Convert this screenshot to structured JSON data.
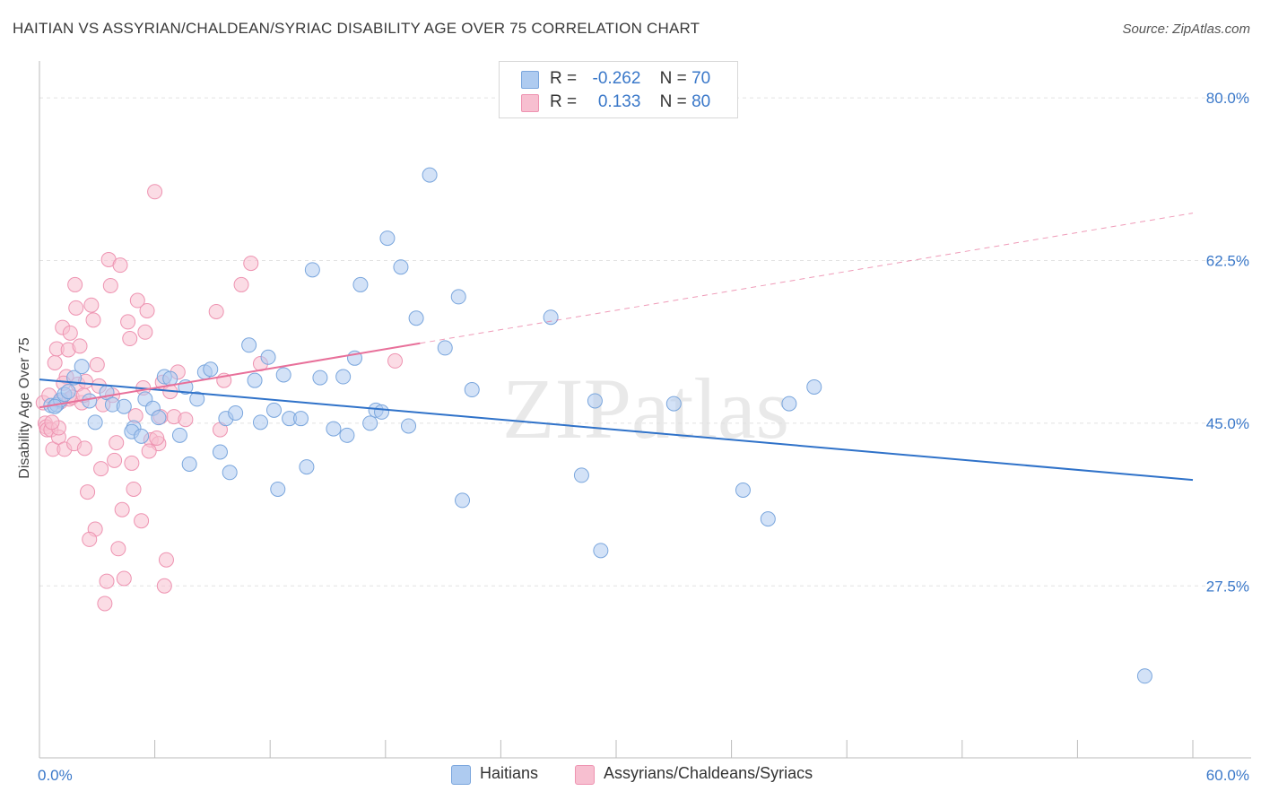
{
  "title": "HAITIAN VS ASSYRIAN/CHALDEAN/SYRIAC DISABILITY AGE OVER 75 CORRELATION CHART",
  "source": "Source: ZipAtlas.com",
  "watermark": "ZIPatlas",
  "legend_top": [
    {
      "r_label": "R =",
      "r_value": "-0.262",
      "n_label": "N =",
      "n_value": "70"
    },
    {
      "r_label": "R =",
      "r_value": "0.133",
      "n_label": "N =",
      "n_value": "80"
    }
  ],
  "colors": {
    "haitians_fill": "#aecbf0",
    "haitians_stroke": "#7aa6dd",
    "haitians_line": "#2f72c9",
    "assyrians_fill": "#f7bfd0",
    "assyrians_stroke": "#ee93b1",
    "assyrians_line": "#e8709a",
    "axis_label": "#3a78c9",
    "grid": "#e2e2e2"
  },
  "chart_data": {
    "type": "scatter",
    "xlabel": "",
    "ylabel": "Disability Age Over 75",
    "xlim": [
      0,
      60
    ],
    "ylim": [
      9,
      83
    ],
    "x_tick_labels": [
      "0.0%",
      "60.0%"
    ],
    "y_ticks": [
      27.5,
      45.0,
      62.5,
      80.0
    ],
    "y_tick_labels": [
      "27.5%",
      "45.0%",
      "62.5%",
      "80.0%"
    ],
    "grid": true,
    "legend_position": "top-center",
    "series": [
      {
        "name": "Haitians",
        "r": -0.262,
        "n": 70,
        "trend": {
          "x0": 0,
          "y0": 49.7,
          "x1": 60,
          "y1": 38.9,
          "solid_to": 60
        },
        "points": [
          [
            0.6,
            46.9
          ],
          [
            0.9,
            47.0
          ],
          [
            1.1,
            47.5
          ],
          [
            1.3,
            48.1
          ],
          [
            1.8,
            49.9
          ],
          [
            2.2,
            51.1
          ],
          [
            2.6,
            47.4
          ],
          [
            2.9,
            45.1
          ],
          [
            3.5,
            48.3
          ],
          [
            3.8,
            47.0
          ],
          [
            4.4,
            46.8
          ],
          [
            4.9,
            44.5
          ],
          [
            4.8,
            44.1
          ],
          [
            5.3,
            43.6
          ],
          [
            5.5,
            47.6
          ],
          [
            5.9,
            46.6
          ],
          [
            6.2,
            45.6
          ],
          [
            6.5,
            50.0
          ],
          [
            6.8,
            49.8
          ],
          [
            7.3,
            43.7
          ],
          [
            7.6,
            48.9
          ],
          [
            7.8,
            40.6
          ],
          [
            8.2,
            47.6
          ],
          [
            8.6,
            50.5
          ],
          [
            8.9,
            50.8
          ],
          [
            9.4,
            41.9
          ],
          [
            9.7,
            45.5
          ],
          [
            9.9,
            39.7
          ],
          [
            10.2,
            46.1
          ],
          [
            10.9,
            53.4
          ],
          [
            11.2,
            49.6
          ],
          [
            11.5,
            45.1
          ],
          [
            11.9,
            52.1
          ],
          [
            12.2,
            46.4
          ],
          [
            12.4,
            37.9
          ],
          [
            12.7,
            50.2
          ],
          [
            13.0,
            45.5
          ],
          [
            13.6,
            45.5
          ],
          [
            13.9,
            40.3
          ],
          [
            14.2,
            61.5
          ],
          [
            14.6,
            49.9
          ],
          [
            15.3,
            44.4
          ],
          [
            15.8,
            50.0
          ],
          [
            16.0,
            43.7
          ],
          [
            16.4,
            52.0
          ],
          [
            16.7,
            59.9
          ],
          [
            17.2,
            45.0
          ],
          [
            17.5,
            46.4
          ],
          [
            17.8,
            46.2
          ],
          [
            18.1,
            64.9
          ],
          [
            18.8,
            61.8
          ],
          [
            19.2,
            44.7
          ],
          [
            19.6,
            56.3
          ],
          [
            20.3,
            71.7
          ],
          [
            21.1,
            53.1
          ],
          [
            21.8,
            58.6
          ],
          [
            22.0,
            36.7
          ],
          [
            22.5,
            48.6
          ],
          [
            26.6,
            56.4
          ],
          [
            28.2,
            39.4
          ],
          [
            28.9,
            47.4
          ],
          [
            29.2,
            31.3
          ],
          [
            33.0,
            47.1
          ],
          [
            36.6,
            37.8
          ],
          [
            37.9,
            34.7
          ],
          [
            39.0,
            47.1
          ],
          [
            40.3,
            48.9
          ],
          [
            57.5,
            17.8
          ],
          [
            0.8,
            46.8
          ],
          [
            1.5,
            48.4
          ]
        ]
      },
      {
        "name": "Assyrians/Chaldeans/Syriacs",
        "r": 0.133,
        "n": 80,
        "trend": {
          "x0": 0,
          "y0": 46.7,
          "x1": 60,
          "y1": 67.6,
          "solid_to": 19.8
        },
        "points": [
          [
            0.2,
            47.2
          ],
          [
            0.3,
            45.0
          ],
          [
            0.35,
            44.6
          ],
          [
            0.4,
            44.3
          ],
          [
            0.5,
            48.0
          ],
          [
            0.6,
            44.3
          ],
          [
            0.7,
            42.2
          ],
          [
            0.8,
            51.5
          ],
          [
            0.9,
            53.0
          ],
          [
            1.0,
            43.5
          ],
          [
            1.1,
            47.3
          ],
          [
            1.2,
            55.3
          ],
          [
            1.3,
            42.2
          ],
          [
            1.4,
            50.0
          ],
          [
            1.5,
            52.9
          ],
          [
            1.55,
            47.6
          ],
          [
            1.6,
            54.7
          ],
          [
            1.7,
            47.8
          ],
          [
            1.8,
            42.8
          ],
          [
            1.85,
            59.9
          ],
          [
            1.9,
            57.4
          ],
          [
            2.0,
            49.2
          ],
          [
            2.1,
            53.3
          ],
          [
            2.2,
            47.2
          ],
          [
            2.3,
            48.0
          ],
          [
            2.4,
            49.5
          ],
          [
            2.5,
            37.6
          ],
          [
            2.7,
            57.7
          ],
          [
            2.8,
            56.1
          ],
          [
            2.9,
            33.6
          ],
          [
            3.0,
            51.3
          ],
          [
            3.1,
            49.0
          ],
          [
            3.2,
            40.1
          ],
          [
            3.4,
            25.6
          ],
          [
            3.5,
            28.0
          ],
          [
            3.6,
            62.6
          ],
          [
            3.7,
            59.8
          ],
          [
            3.8,
            48.0
          ],
          [
            3.9,
            41.0
          ],
          [
            4.0,
            42.9
          ],
          [
            4.2,
            62.0
          ],
          [
            4.3,
            35.7
          ],
          [
            4.4,
            28.3
          ],
          [
            4.6,
            55.9
          ],
          [
            4.7,
            54.1
          ],
          [
            4.8,
            40.7
          ],
          [
            4.9,
            37.9
          ],
          [
            5.0,
            45.8
          ],
          [
            5.1,
            58.2
          ],
          [
            5.3,
            34.5
          ],
          [
            5.4,
            48.8
          ],
          [
            5.5,
            54.8
          ],
          [
            5.6,
            57.1
          ],
          [
            5.8,
            43.2
          ],
          [
            6.0,
            69.9
          ],
          [
            6.2,
            42.8
          ],
          [
            6.3,
            45.7
          ],
          [
            6.4,
            49.4
          ],
          [
            6.5,
            27.5
          ],
          [
            6.6,
            30.3
          ],
          [
            6.8,
            48.4
          ],
          [
            7.0,
            45.7
          ],
          [
            7.2,
            50.5
          ],
          [
            9.2,
            57.0
          ],
          [
            9.4,
            44.3
          ],
          [
            9.6,
            49.6
          ],
          [
            10.5,
            59.9
          ],
          [
            11.0,
            62.2
          ],
          [
            11.5,
            51.4
          ],
          [
            18.5,
            51.7
          ],
          [
            1.0,
            44.5
          ],
          [
            2.6,
            32.5
          ],
          [
            3.3,
            47.0
          ],
          [
            4.1,
            31.5
          ],
          [
            5.7,
            42.0
          ],
          [
            0.65,
            45.1
          ],
          [
            1.25,
            49.3
          ],
          [
            2.35,
            42.3
          ],
          [
            6.1,
            43.4
          ],
          [
            7.6,
            45.4
          ]
        ]
      }
    ]
  },
  "bottom_legend": [
    {
      "label": "Haitians"
    },
    {
      "label": "Assyrians/Chaldeans/Syriacs"
    }
  ]
}
